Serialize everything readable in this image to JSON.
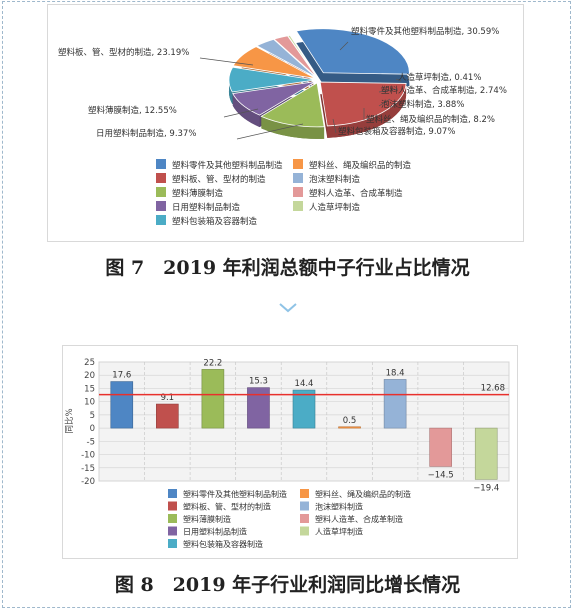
{
  "colors": {
    "series": [
      "#4e86c4",
      "#c0504d",
      "#9bbb59",
      "#8064a2",
      "#4bacc6",
      "#f79646",
      "#95b3d7",
      "#e39999",
      "#c4d79b"
    ]
  },
  "icons": {
    "divider": "chevron-down-icon"
  },
  "chart_data": [
    {
      "type": "pie",
      "style": "3d-exploded",
      "slices": [
        {
          "label": "塑料零件及其他塑料制品制造",
          "value": 30.59,
          "value_label": "30.59%"
        },
        {
          "label": "塑料板、管、型材的制造",
          "value": 23.19,
          "value_label": "23.19%"
        },
        {
          "label": "塑料薄膜制造",
          "value": 12.55,
          "value_label": "12.55%"
        },
        {
          "label": "日用塑料制品制造",
          "value": 9.37,
          "value_label": "9.37%"
        },
        {
          "label": "塑料包装箱及容器制造",
          "value": 9.07,
          "value_label": "9.07%"
        },
        {
          "label": "塑料丝、绳及编织品的制造",
          "value": 8.2,
          "value_label": "8.2%"
        },
        {
          "label": "泡沫塑料制造",
          "value": 3.88,
          "value_label": "3.88%"
        },
        {
          "label": "塑料人造革、合成革制造",
          "value": 2.74,
          "value_label": "2.74%"
        },
        {
          "label": "人造草坪制造",
          "value": 0.41,
          "value_label": "0.41%"
        }
      ],
      "legend": {
        "position": "bottom",
        "items": [
          {
            "label": "塑料零件及其他塑料制品制造",
            "color": "#4e86c4"
          },
          {
            "label": "塑料丝、绳及编织品的制造",
            "color": "#f79646"
          },
          {
            "label": "塑料板、管、型材的制造",
            "color": "#c0504d"
          },
          {
            "label": "泡沫塑料制造",
            "color": "#95b3d7"
          },
          {
            "label": "塑料薄膜制造",
            "color": "#9bbb59"
          },
          {
            "label": "塑料人造革、合成革制造",
            "color": "#e39999"
          },
          {
            "label": "日用塑料制品制造",
            "color": "#8064a2"
          },
          {
            "label": "人造草坪制造",
            "color": "#c4d79b"
          },
          {
            "label": "塑料包装箱及容器制造",
            "color": "#4bacc6"
          }
        ]
      }
    },
    {
      "type": "bar",
      "ylabel": "同比%",
      "ylim": [
        -20,
        25
      ],
      "yticks": [
        "25",
        "20",
        "15",
        "10",
        "5",
        "0",
        "-5",
        "-10",
        "-15",
        "-20"
      ],
      "grid": true,
      "reference_line": {
        "value": 12.68,
        "label": "12.68",
        "color": "#e8302c"
      },
      "values": [
        17.6,
        9.1,
        22.2,
        15.3,
        14.4,
        0.5,
        18.4,
        -14.5,
        -19.4
      ],
      "value_labels": [
        "17.6",
        "9.1",
        "22.2",
        "15.3",
        "14.4",
        "0.5",
        "18.4",
        "−14.5",
        "−19.4"
      ],
      "bar_colors": [
        "#4e86c4",
        "#c0504d",
        "#9bbb59",
        "#8064a2",
        "#4bacc6",
        "#f79646",
        "#95b3d7",
        "#e39999",
        "#c4d79b"
      ],
      "legend": {
        "position": "bottom",
        "items": [
          {
            "label": "塑料零件及其他塑料制品制造",
            "color": "#4e86c4"
          },
          {
            "label": "塑料丝、绳及编织品的制造",
            "color": "#f79646"
          },
          {
            "label": "塑料板、管、型材的制造",
            "color": "#c0504d"
          },
          {
            "label": "泡沫塑料制造",
            "color": "#95b3d7"
          },
          {
            "label": "塑料薄膜制造",
            "color": "#9bbb59"
          },
          {
            "label": "塑料人造革、合成革制造",
            "color": "#e39999"
          },
          {
            "label": "日用塑料制品制造",
            "color": "#8064a2"
          },
          {
            "label": "人造草坪制造",
            "color": "#c4d79b"
          },
          {
            "label": "塑料包装箱及容器制造",
            "color": "#4bacc6"
          }
        ]
      }
    }
  ],
  "captions": {
    "fig7": "图 7　2019 年利润总额中子行业占比情况",
    "fig8": "图 8　2019 年子行业利润同比增长情况"
  }
}
